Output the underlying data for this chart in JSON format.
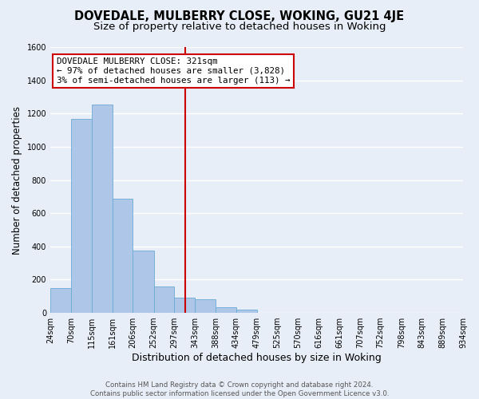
{
  "title": "DOVEDALE, MULBERRY CLOSE, WOKING, GU21 4JE",
  "subtitle": "Size of property relative to detached houses in Woking",
  "xlabel": "Distribution of detached houses by size in Woking",
  "ylabel": "Number of detached properties",
  "bar_heights": [
    150,
    1170,
    1255,
    685,
    375,
    160,
    90,
    80,
    35,
    20,
    0,
    0,
    0,
    0,
    0,
    0,
    0,
    0,
    0,
    0
  ],
  "bin_edges": [
    24,
    70,
    115,
    161,
    206,
    252,
    297,
    343,
    388,
    434,
    479,
    525,
    570,
    616,
    661,
    707,
    752,
    798,
    843,
    889,
    934
  ],
  "tick_labels": [
    "24sqm",
    "70sqm",
    "115sqm",
    "161sqm",
    "206sqm",
    "252sqm",
    "297sqm",
    "343sqm",
    "388sqm",
    "434sqm",
    "479sqm",
    "525sqm",
    "570sqm",
    "616sqm",
    "661sqm",
    "707sqm",
    "752sqm",
    "798sqm",
    "843sqm",
    "889sqm",
    "934sqm"
  ],
  "bar_color": "#aec6e8",
  "bar_edge_color": "#6aaad4",
  "vline_x": 321,
  "vline_color": "#cc0000",
  "ylim": [
    0,
    1600
  ],
  "yticks": [
    0,
    200,
    400,
    600,
    800,
    1000,
    1200,
    1400,
    1600
  ],
  "annotation_title": "DOVEDALE MULBERRY CLOSE: 321sqm",
  "annotation_line1": "← 97% of detached houses are smaller (3,828)",
  "annotation_line2": "3% of semi-detached houses are larger (113) →",
  "annotation_box_color": "#ffffff",
  "annotation_box_edge": "#cc0000",
  "footer1": "Contains HM Land Registry data © Crown copyright and database right 2024.",
  "footer2": "Contains public sector information licensed under the Open Government Licence v3.0.",
  "background_color": "#e8eef7",
  "grid_color": "#ffffff",
  "title_fontsize": 10.5,
  "subtitle_fontsize": 9.5,
  "ylabel_fontsize": 8.5,
  "xlabel_fontsize": 9,
  "tick_fontsize": 7,
  "annotation_fontsize": 7.8,
  "footer_fontsize": 6.2,
  "footer_color": "#555555"
}
